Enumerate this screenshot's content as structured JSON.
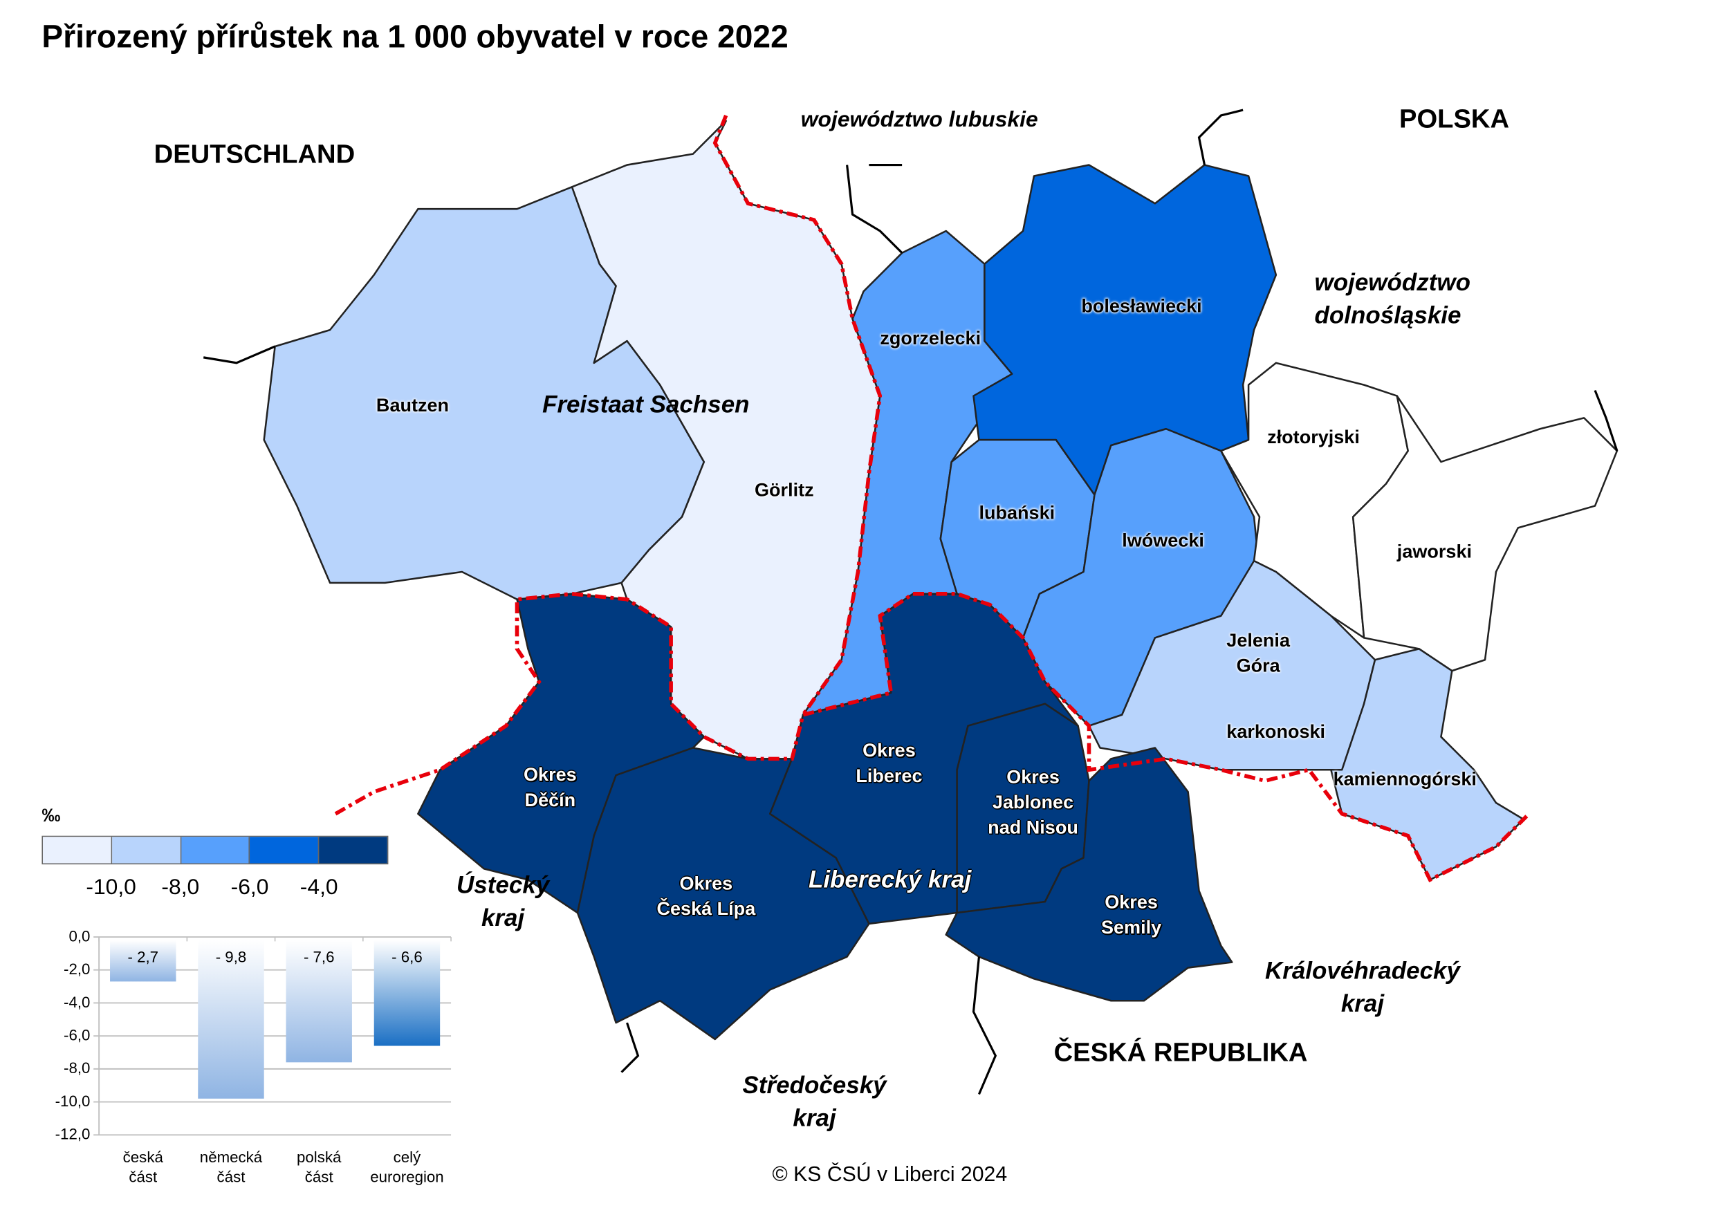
{
  "title": "Přirozený přírůstek na 1 000 obyvatel v roce 2022",
  "countries": {
    "de": "DEUTSCHLAND",
    "pl": "POLSKA",
    "cz": "ČESKÁ  REPUBLIKA"
  },
  "regions": {
    "sachsen": "Freistaat Sachsen",
    "lubuskie": "województwo lubuskie",
    "dolnoslaskie_1": "województwo",
    "dolnoslaskie_2": "dolnośląskie",
    "ustecky_1": "Ústecký",
    "ustecky_2": "kraj",
    "liberecky": "Liberecký kraj",
    "stredocesky_1": "Středočeský",
    "stredocesky_2": "kraj",
    "kralovehradecky_1": "Královéhradecký",
    "kralovehradecky_2": "kraj"
  },
  "districts": [
    {
      "name": "Bautzen",
      "color": "#b8d4fc"
    },
    {
      "name": "Görlitz",
      "color": "#eaf1fe"
    },
    {
      "name": "zgorzelecki",
      "color": "#57a0fc"
    },
    {
      "name": "bolesławiecki",
      "color": "#0066dd"
    },
    {
      "name": "lubański",
      "color": "#57a0fc"
    },
    {
      "name": "lwówecki",
      "color": "#57a0fc"
    },
    {
      "name": "złotoryjski",
      "color": "#ffffff"
    },
    {
      "name": "jaworski",
      "color": "#ffffff"
    },
    {
      "name": "karkonoski",
      "color": "#b8d4fc"
    },
    {
      "name": "kamiennogórski",
      "color": "#b8d4fc"
    },
    {
      "name": "Okres Děčín",
      "color": "#003a80"
    },
    {
      "name": "Okres Česká Lípa",
      "color": "#003a80"
    },
    {
      "name": "Okres Liberec",
      "color": "#003a80"
    },
    {
      "name": "Okres Jablonec nad Nisou",
      "color": "#003a80"
    },
    {
      "name": "Okres Semily",
      "color": "#003a80"
    }
  ],
  "district_labels": {
    "jelenia_1": "Jelenia",
    "jelenia_2": "Góra",
    "decin_1": "Okres",
    "decin_2": "Děčín",
    "lipa_1": "Okres",
    "lipa_2": "Česká Lípa",
    "liberec_1": "Okres",
    "liberec_2": "Liberec",
    "jablonec_1": "Okres",
    "jablonec_2": "Jablonec",
    "jablonec_3": "nad Nisou",
    "semily_1": "Okres",
    "semily_2": "Semily"
  },
  "border_color": "#e8000b",
  "legend": {
    "unit": "‰",
    "colors": [
      "#eaf1fe",
      "#b8d4fc",
      "#57a0fc",
      "#0066dd",
      "#003a80"
    ],
    "breaks": [
      "-10,0",
      "-8,0",
      "-6,0",
      "-4,0"
    ]
  },
  "chart_data": {
    "type": "bar",
    "categories": [
      "česká část",
      "německá část",
      "polská část",
      "celý euroregion"
    ],
    "category_lines": [
      [
        "česká",
        "část"
      ],
      [
        "německá",
        "část"
      ],
      [
        "polská",
        "část"
      ],
      [
        "celý",
        "euroregion"
      ]
    ],
    "values": [
      -2.7,
      -9.8,
      -7.6,
      -6.6
    ],
    "data_labels": [
      "- 2,7",
      "- 9,8",
      "- 7,6",
      "- 6,6"
    ],
    "ylim": [
      -12,
      0
    ],
    "yticks": [
      "0,0",
      "-2,0",
      "-4,0",
      "-6,0",
      "-8,0",
      "-10,0",
      "-12,0"
    ],
    "grid": true,
    "bar_colors": [
      "#8fb4e3",
      "#8fb4e3",
      "#8fb4e3",
      "#1a6fc4"
    ],
    "title": "",
    "xlabel": "",
    "ylabel": ""
  },
  "copyright": "© KS ČSÚ v Liberci 2024"
}
